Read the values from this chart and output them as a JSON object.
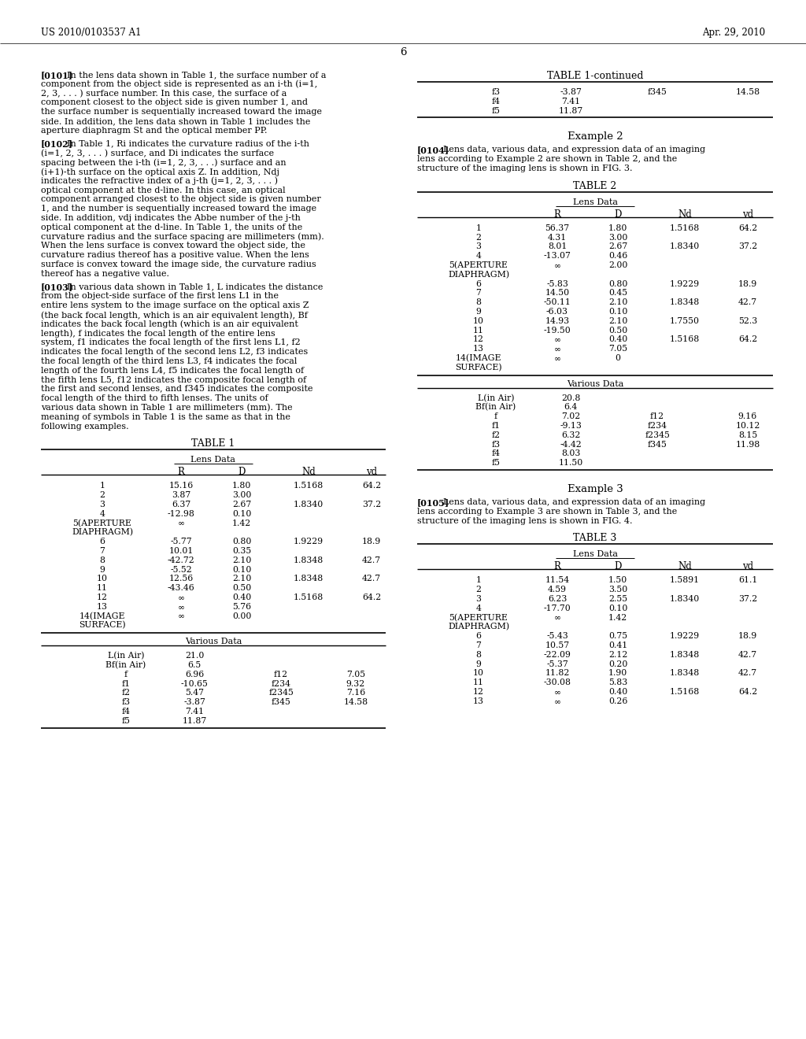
{
  "header_left": "US 2010/0103537 A1",
  "header_right": "Apr. 29, 2010",
  "page_number": "6",
  "background_color": "#ffffff",
  "para0101": "In the lens data shown in Table 1, the surface number of a component from the object side is represented as an i-th (i=1, 2, 3, . . . ) surface number. In this case, the surface of a component closest to the object side is given number 1, and the surface number is sequentially increased toward the image side. In addition, the lens data shown in Table 1 includes the aperture diaphragm St and the optical member PP.",
  "para0102": "In Table 1, Ri indicates the curvature radius of the i-th (i=1, 2, 3, . . . ) surface, and Di indicates the surface spacing between the i-th (i=1, 2, 3, . . .) surface and an (i+1)-th surface on the optical axis Z. In addition, Ndj indicates the refractive index of a j-th (j=1, 2, 3, . . . ) optical component at the d-line. In this case, an optical component arranged closest to the object side is given number 1, and the number is sequentially increased toward the image side. In addition, vdj indicates the Abbe number of the j-th optical component at the d-line. In Table 1, the units of the curvature radius and the surface spacing are millimeters (mm). When the lens surface is convex toward the object side, the curvature radius thereof has a positive value. When the lens surface is convex toward the image side, the curvature radius thereof has a negative value.",
  "para0103": "In various data shown in Table 1, L indicates the distance from the object-side surface of the first lens L1 in the entire lens system to the image surface on the optical axis Z (the back focal length, which is an air equivalent length), Bf indicates the back focal length (which is an air equivalent length), f indicates the focal length of the entire lens system, f1 indicates the focal length of the first lens L1, f2 indicates the focal length of the second lens L2, f3 indicates the focal length of the third lens L3, f4 indicates the focal length of the fourth lens L4, f5 indicates the focal length of the fifth lens L5, f12 indicates the composite focal length of the first and second lenses, and f345 indicates the composite focal length of the third to fifth lenses. The units of various data shown in Table 1 are millimeters (mm). The meaning of symbols in Table 1 is the same as that in the following examples.",
  "para0104": "Lens data, various data, and expression data of an imaging lens according to Example 2 are shown in Table 2, and the structure of the imaging lens is shown in FIG. 3.",
  "para0105": "Lens data, various data, and expression data of an imaging lens according to Example 3 are shown in Table 3, and the structure of the imaging lens is shown in FIG. 4.",
  "table1_lens_rows": [
    [
      "1",
      "15.16",
      "1.80",
      "1.5168",
      "64.2"
    ],
    [
      "2",
      "3.87",
      "3.00",
      "",
      ""
    ],
    [
      "3",
      "6.37",
      "2.67",
      "1.8340",
      "37.2"
    ],
    [
      "4",
      "-12.98",
      "0.10",
      "",
      ""
    ],
    [
      "5(APERTURE\nDIAPHRAGM)",
      "∞",
      "1.42",
      "",
      ""
    ],
    [
      "6",
      "-5.77",
      "0.80",
      "1.9229",
      "18.9"
    ],
    [
      "7",
      "10.01",
      "0.35",
      "",
      ""
    ],
    [
      "8",
      "-42.72",
      "2.10",
      "1.8348",
      "42.7"
    ],
    [
      "9",
      "-5.52",
      "0.10",
      "",
      ""
    ],
    [
      "10",
      "12.56",
      "2.10",
      "1.8348",
      "42.7"
    ],
    [
      "11",
      "-43.46",
      "0.50",
      "",
      ""
    ],
    [
      "12",
      "∞",
      "0.40",
      "1.5168",
      "64.2"
    ],
    [
      "13",
      "∞",
      "5.76",
      "",
      ""
    ],
    [
      "14(IMAGE\nSURFACE)",
      "∞",
      "0.00",
      "",
      ""
    ]
  ],
  "table1_various_rows": [
    [
      "L(in Air)",
      "21.0",
      "",
      ""
    ],
    [
      "Bf(in Air)",
      "6.5",
      "",
      ""
    ],
    [
      "f",
      "6.96",
      "f12",
      "7.05"
    ],
    [
      "f1",
      "-10.65",
      "f234",
      "9.32"
    ],
    [
      "f2",
      "5.47",
      "f2345",
      "7.16"
    ],
    [
      "f3",
      "-3.87",
      "f345",
      "14.58"
    ],
    [
      "f4",
      "7.41",
      "",
      ""
    ],
    [
      "f5",
      "11.87",
      "",
      ""
    ]
  ],
  "table2_lens_rows": [
    [
      "1",
      "56.37",
      "1.80",
      "1.5168",
      "64.2"
    ],
    [
      "2",
      "4.31",
      "3.00",
      "",
      ""
    ],
    [
      "3",
      "8.01",
      "2.67",
      "1.8340",
      "37.2"
    ],
    [
      "4",
      "-13.07",
      "0.46",
      "",
      ""
    ],
    [
      "5(APERTURE\nDIAPHRAGM)",
      "∞",
      "2.00",
      "",
      ""
    ],
    [
      "6",
      "-5.83",
      "0.80",
      "1.9229",
      "18.9"
    ],
    [
      "7",
      "14.50",
      "0.45",
      "",
      ""
    ],
    [
      "8",
      "-50.11",
      "2.10",
      "1.8348",
      "42.7"
    ],
    [
      "9",
      "-6.03",
      "0.10",
      "",
      ""
    ],
    [
      "10",
      "14.93",
      "2.10",
      "1.7550",
      "52.3"
    ],
    [
      "11",
      "-19.50",
      "0.50",
      "",
      ""
    ],
    [
      "12",
      "∞",
      "0.40",
      "1.5168",
      "64.2"
    ],
    [
      "13",
      "∞",
      "7.05",
      "",
      ""
    ],
    [
      "14(IMAGE\nSURFACE)",
      "∞",
      "0",
      "",
      ""
    ]
  ],
  "table2_various_rows": [
    [
      "L(in Air)",
      "20.8",
      "",
      ""
    ],
    [
      "Bf(in Air)",
      "6.4",
      "",
      ""
    ],
    [
      "f",
      "7.02",
      "f12",
      "9.16"
    ],
    [
      "f1",
      "-9.13",
      "f234",
      "10.12"
    ],
    [
      "f2",
      "6.32",
      "f2345",
      "8.15"
    ],
    [
      "f3",
      "-4.42",
      "f345",
      "11.98"
    ],
    [
      "f4",
      "8.03",
      "",
      ""
    ],
    [
      "f5",
      "11.50",
      "",
      ""
    ]
  ],
  "table3_lens_rows": [
    [
      "1",
      "11.54",
      "1.50",
      "1.5891",
      "61.1"
    ],
    [
      "2",
      "4.59",
      "3.50",
      "",
      ""
    ],
    [
      "3",
      "6.23",
      "2.55",
      "1.8340",
      "37.2"
    ],
    [
      "4",
      "-17.70",
      "0.10",
      "",
      ""
    ],
    [
      "5(APERTURE\nDIAPHRAGM)",
      "∞",
      "1.42",
      "",
      ""
    ],
    [
      "6",
      "-5.43",
      "0.75",
      "1.9229",
      "18.9"
    ],
    [
      "7",
      "10.57",
      "0.41",
      "",
      ""
    ],
    [
      "8",
      "-22.09",
      "2.12",
      "1.8348",
      "42.7"
    ],
    [
      "9",
      "-5.37",
      "0.20",
      "",
      ""
    ],
    [
      "10",
      "11.82",
      "1.90",
      "1.8348",
      "42.7"
    ],
    [
      "11",
      "-30.08",
      "5.83",
      "",
      ""
    ],
    [
      "12",
      "∞",
      "0.40",
      "1.5168",
      "64.2"
    ],
    [
      "13",
      "∞",
      "0.26",
      "",
      ""
    ]
  ]
}
